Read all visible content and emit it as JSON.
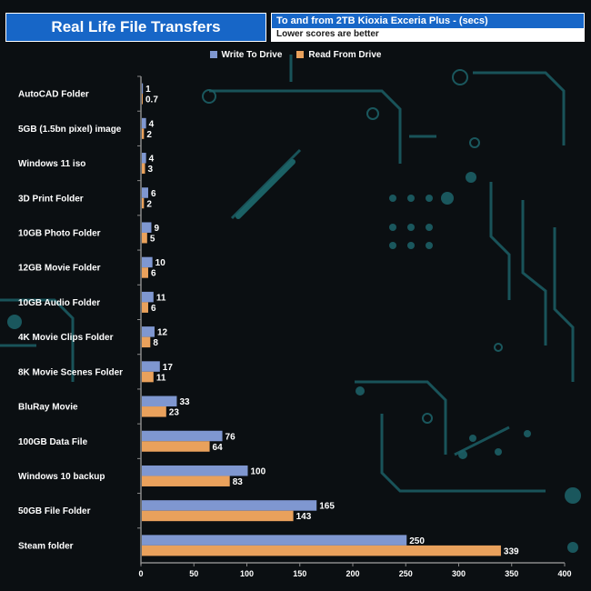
{
  "header": {
    "title": "Real Life File Transfers",
    "subtitle": "To and from 2TB Kioxia Exceria Plus - (secs)",
    "note": "Lower scores are better"
  },
  "colors": {
    "write": "#7f97d0",
    "read": "#e9a15c",
    "title_bg": "#1766c7",
    "background": "#0b0f12",
    "circuit": "#1c5f66"
  },
  "chart_data": {
    "type": "bar",
    "orientation": "horizontal",
    "categories": [
      "AutoCAD Folder",
      "5GB (1.5bn pixel) image",
      "Windows 11 iso",
      "3D Print Folder",
      "10GB Photo Folder",
      "12GB Movie Folder",
      "10GB Audio Folder",
      "4K Movie Clips Folder",
      "8K Movie Scenes Folder",
      "BluRay Movie",
      "100GB Data File",
      "Windows 10 backup",
      "50GB File Folder",
      "Steam folder"
    ],
    "series": [
      {
        "name": "Write To  Drive",
        "values": [
          1,
          4,
          4,
          6,
          9,
          10,
          11,
          12,
          17,
          33,
          76,
          100,
          165,
          250
        ]
      },
      {
        "name": "Read From  Drive",
        "values": [
          0.7,
          2,
          3,
          2,
          5,
          6,
          6,
          8,
          11,
          23,
          64,
          83,
          143,
          339
        ]
      }
    ],
    "xlim": [
      0,
      400
    ],
    "xticks": [
      0,
      50,
      100,
      150,
      200,
      250,
      300,
      350,
      400
    ],
    "legend_position": "top-center",
    "grid": false
  }
}
